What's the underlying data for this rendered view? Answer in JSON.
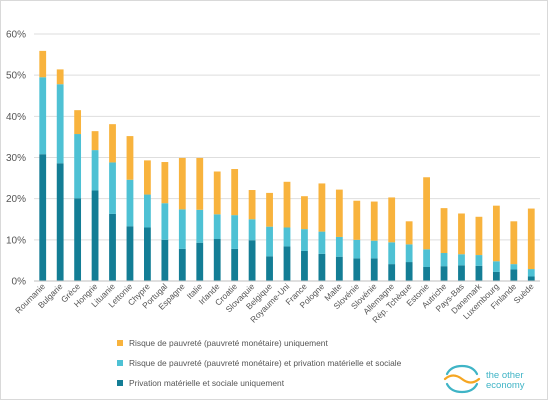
{
  "colors": {
    "material": "#137d95",
    "both": "#4ec1d4",
    "monetary": "#f8b33d",
    "grid": "#dedede",
    "axis": "#bfbfbf",
    "logo_blue": "#3fb4c6",
    "logo_orange": "#f5a623"
  },
  "logo": {
    "line1": "the other",
    "line2": "economy"
  },
  "chart_data": {
    "type": "bar",
    "stacked": true,
    "ylim": [
      0,
      60
    ],
    "yticks": [
      "0%",
      "10%",
      "20%",
      "30%",
      "40%",
      "50%",
      "60%"
    ],
    "ytick_values": [
      0,
      10,
      20,
      30,
      40,
      50,
      60
    ],
    "grid": true,
    "legend_position": "bottom-left",
    "categories": [
      "Roumanie",
      "Bulgarie",
      "Grèce",
      "Hongrie",
      "Lituanie",
      "Lettonie",
      "Chypre",
      "Portugal",
      "Espagne",
      "Italie",
      "Irlande",
      "Croatie",
      "Slovaquie",
      "Belgique",
      "Royaume-Uni",
      "France",
      "Pologne",
      "Malte",
      "Slovénie",
      "Slovénie",
      "Allemagne",
      "Rép. Tchèque",
      "Estonie",
      "Autriche",
      "Pays-Bas",
      "Danemark",
      "Luxembourg",
      "Finlande",
      "Suède"
    ],
    "series": [
      {
        "name": "Privation matérielle et sociale uniquement",
        "color_key": "material",
        "values": [
          30.8,
          28.6,
          20.1,
          22.0,
          16.3,
          13.3,
          13.0,
          10.0,
          7.8,
          9.3,
          10.2,
          7.8,
          9.9,
          6.0,
          8.4,
          7.3,
          6.6,
          5.9,
          5.5,
          5.5,
          4.1,
          4.6,
          3.4,
          3.6,
          3.8,
          3.7,
          2.2,
          2.8,
          1.1
        ]
      },
      {
        "name": "Risque de pauvreté (pauvreté monétaire) et privation matérielle et sociale",
        "color_key": "both",
        "values": [
          18.7,
          19.2,
          15.6,
          9.8,
          12.5,
          11.3,
          8.0,
          8.9,
          9.6,
          8.0,
          6.0,
          8.2,
          5.1,
          7.2,
          4.6,
          5.3,
          5.4,
          4.8,
          4.5,
          4.3,
          5.3,
          4.3,
          4.3,
          3.2,
          2.7,
          2.6,
          2.6,
          1.3,
          1.8
        ]
      },
      {
        "name": "Risque de pauvreté (pauvreté monétaire) uniquement",
        "color_key": "monetary",
        "values": [
          6.4,
          3.6,
          5.8,
          4.6,
          9.3,
          10.6,
          8.3,
          10.0,
          12.5,
          12.6,
          10.4,
          11.2,
          7.1,
          8.2,
          11.1,
          8.0,
          11.7,
          11.5,
          9.5,
          9.5,
          10.9,
          5.6,
          17.5,
          10.9,
          9.9,
          9.3,
          13.5,
          10.4,
          14.7
        ]
      }
    ]
  }
}
